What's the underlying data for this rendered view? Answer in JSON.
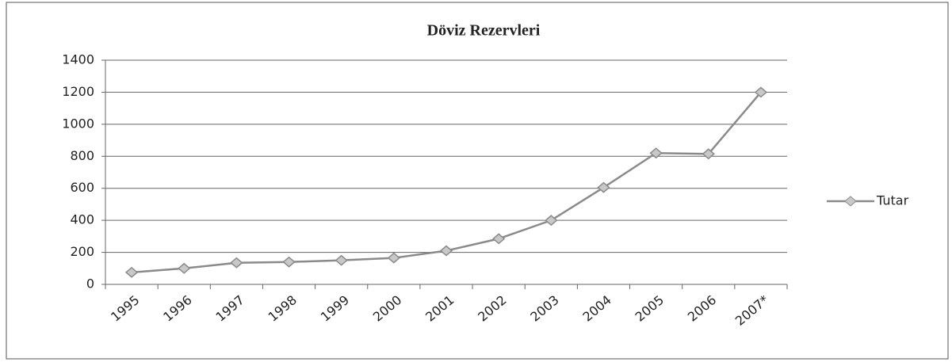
{
  "chart_data": {
    "type": "line",
    "title": "Döviz Rezervleri",
    "categories": [
      "1995",
      "1996",
      "1997",
      "1998",
      "1999",
      "2000",
      "2001",
      "2002",
      "2003",
      "2004",
      "2005",
      "2006",
      "2007*"
    ],
    "series": [
      {
        "name": "Tutar",
        "color": "#8a8a8a",
        "values": [
          75,
          100,
          135,
          140,
          150,
          165,
          210,
          285,
          400,
          605,
          820,
          815,
          1200
        ]
      }
    ],
    "ylim": [
      0,
      1400
    ],
    "yticks": [
      0,
      200,
      400,
      600,
      800,
      1000,
      1200,
      1400
    ],
    "grid": true,
    "legend": "right"
  }
}
